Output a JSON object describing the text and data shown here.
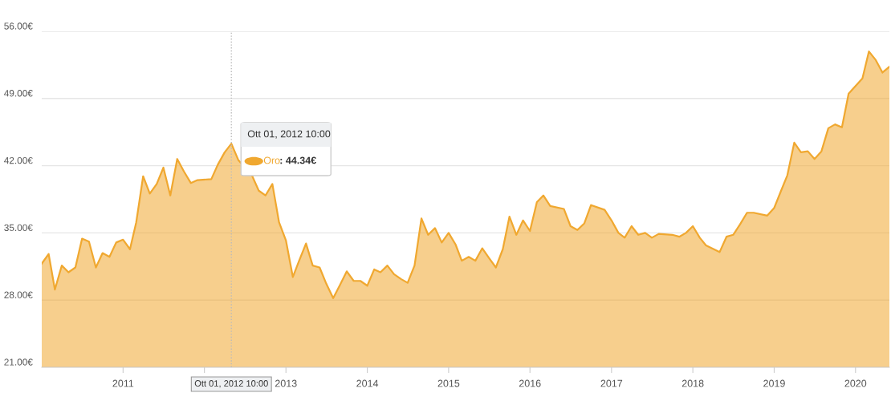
{
  "chart_data": {
    "type": "area",
    "x": [
      "2010-01",
      "2010-02",
      "2010-03",
      "2010-04",
      "2010-05",
      "2010-06",
      "2010-07",
      "2010-08",
      "2010-09",
      "2010-10",
      "2010-11",
      "2010-12",
      "2011-01",
      "2011-02",
      "2011-03",
      "2011-04",
      "2011-05",
      "2011-06",
      "2011-07",
      "2011-08",
      "2011-09",
      "2011-10",
      "2011-11",
      "2011-12",
      "2012-02",
      "2012-03",
      "2012-04",
      "2012-05",
      "2012-06",
      "2012-08",
      "2012-09",
      "2012-10",
      "2012-11",
      "2012-12",
      "2013-01",
      "2013-02",
      "2013-03",
      "2013-04",
      "2013-05",
      "2013-06",
      "2013-07",
      "2013-08",
      "2013-09",
      "2013-10",
      "2013-11",
      "2013-12",
      "2014-01",
      "2014-02",
      "2014-03",
      "2014-04",
      "2014-05",
      "2014-06",
      "2014-07",
      "2014-08",
      "2014-09",
      "2014-10",
      "2014-11",
      "2014-12",
      "2015-01",
      "2015-02",
      "2015-03",
      "2015-04",
      "2015-05",
      "2015-06",
      "2015-07",
      "2015-08",
      "2015-09",
      "2015-10",
      "2015-11",
      "2015-12",
      "2016-01",
      "2016-02",
      "2016-03",
      "2016-04",
      "2016-06",
      "2016-07",
      "2016-08",
      "2016-09",
      "2016-10",
      "2016-12",
      "2017-01",
      "2017-02",
      "2017-03",
      "2017-04",
      "2017-05",
      "2017-06",
      "2017-07",
      "2017-08",
      "2017-10",
      "2017-11",
      "2017-12",
      "2018-01",
      "2018-02",
      "2018-03",
      "2018-05",
      "2018-06",
      "2018-07",
      "2018-08",
      "2018-09",
      "2018-10",
      "2018-12",
      "2019-01",
      "2019-02",
      "2019-03",
      "2019-04",
      "2019-05",
      "2019-06",
      "2019-07",
      "2019-08",
      "2019-09",
      "2019-10",
      "2019-11",
      "2019-12",
      "2020-01",
      "2020-02",
      "2020-03",
      "2020-04",
      "2020-05",
      "2020-06"
    ],
    "series": [
      {
        "name": "Oro",
        "color": "#f0a830",
        "values": [
          31.8,
          32.8,
          29.1,
          31.6,
          30.9,
          31.4,
          34.4,
          34.1,
          31.4,
          32.9,
          32.5,
          34.0,
          34.3,
          33.3,
          36.1,
          40.9,
          39.1,
          40.1,
          41.8,
          38.9,
          42.7,
          41.4,
          40.2,
          40.5,
          40.6,
          42.1,
          43.4,
          44.3,
          42.6,
          41.0,
          39.4,
          38.9,
          40.1,
          36.1,
          34.2,
          30.4,
          32.1,
          33.9,
          31.6,
          31.4,
          29.7,
          28.2,
          29.6,
          31.0,
          30.0,
          30.0,
          29.5,
          31.2,
          30.9,
          31.6,
          30.7,
          30.2,
          29.8,
          31.6,
          36.5,
          34.8,
          35.5,
          34.0,
          35.0,
          33.8,
          32.1,
          32.5,
          32.1,
          33.4,
          32.4,
          31.4,
          33.3,
          36.7,
          34.8,
          36.3,
          35.2,
          38.2,
          38.9,
          37.8,
          37.5,
          35.7,
          35.3,
          36.0,
          37.9,
          37.4,
          36.3,
          35.0,
          34.5,
          35.7,
          34.8,
          35.0,
          34.5,
          34.9,
          34.8,
          34.6,
          35.0,
          35.7,
          34.5,
          33.7,
          33.0,
          34.6,
          34.8,
          35.9,
          37.1,
          37.1,
          36.8,
          37.6,
          39.4,
          41.0,
          44.4,
          43.4,
          43.5,
          42.7,
          43.5,
          45.9,
          46.3,
          46.0,
          49.5,
          50.3,
          51.1,
          53.9,
          53.0,
          51.7,
          52.3
        ]
      }
    ],
    "xlim": [
      "2010-01",
      "2020-06"
    ],
    "xticks": [
      "2011",
      {
        "value": "2012",
        "label": null
      },
      "2013",
      "2014",
      "2015",
      "2016",
      "2017",
      "2018",
      "2019",
      "2020"
    ],
    "ylim": [
      21,
      56
    ],
    "yticks": [
      {
        "value": 21,
        "label": "21.00€"
      },
      {
        "value": 28,
        "label": "28.00€"
      },
      {
        "value": 35,
        "label": "35.00€"
      },
      {
        "value": 42,
        "label": "42.00€"
      },
      {
        "value": 49,
        "label": "49.00€"
      },
      {
        "value": 56,
        "label": "56.00€"
      }
    ],
    "grid": "y",
    "ref_lines": [
      {
        "axis": "x",
        "value": "2012-05",
        "color": "#bbbbbb",
        "line_style": "dotted"
      }
    ],
    "annotations": [
      "Ott 01, 2012 10:00",
      ": 44.34€",
      "Ott 01, 2012 10:00"
    ]
  }
}
